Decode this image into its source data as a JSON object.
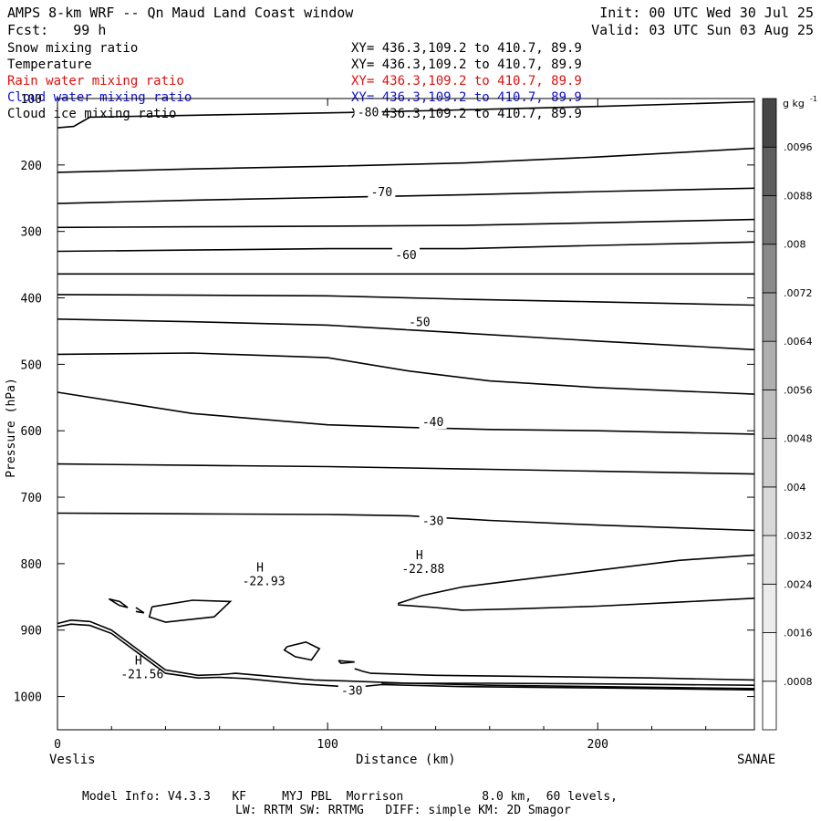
{
  "header": {
    "title": "AMPS 8-km WRF -- Qn Maud Land Coast window",
    "forecast": "Fcst:   99 h",
    "init": "Init: 00 UTC Wed 30 Jul 25",
    "valid": "Valid: 03 UTC Sun 03 Aug 25"
  },
  "fields": [
    {
      "name": "Snow mixing ratio",
      "xy": "XY= 436.3,109.2 to 410.7, 89.9",
      "color": "#000000"
    },
    {
      "name": "Temperature",
      "xy": "XY= 436.3,109.2 to 410.7, 89.9",
      "color": "#000000"
    },
    {
      "name": "Rain water mixing ratio",
      "xy": "XY= 436.3,109.2 to 410.7, 89.9",
      "color": "#e01010"
    },
    {
      "name": "Cloud water mixing ratio",
      "xy": "XY= 436.3,109.2 to 410.7, 89.9",
      "color": "#1010d0"
    },
    {
      "name": "Cloud ice mixing ratio",
      "xy": "XY= 436.3,109.2 to 410.7, 89.9",
      "color": "#000000"
    }
  ],
  "footer": {
    "line1": "Model Info: V4.3.3   KF     MYJ PBL  Morrison           8.0 km,  60 levels,",
    "line2": "LW: RRTM SW: RRTMG   DIFF: simple KM: 2D Smagor"
  },
  "chart_data": {
    "type": "contour",
    "xlabel": "Distance (km)",
    "ylabel": "Pressure (hPa)",
    "x_range": [
      0,
      258
    ],
    "y_range": [
      100,
      1050
    ],
    "x_ticks": [
      0,
      100,
      200
    ],
    "y_ticks": [
      100,
      200,
      300,
      400,
      500,
      600,
      700,
      800,
      900,
      1000
    ],
    "x_end_labels": {
      "left": "Veslis",
      "right": "SANAE"
    },
    "contour_labels": [
      {
        "text": "-80",
        "x": 115,
        "p": 120
      },
      {
        "text": "-70",
        "x": 120,
        "p": 240
      },
      {
        "text": "-60",
        "x": 129,
        "p": 335
      },
      {
        "text": "-50",
        "x": 134,
        "p": 436
      },
      {
        "text": "-40",
        "x": 139,
        "p": 586
      },
      {
        "text": "-30",
        "x": 139,
        "p": 735
      },
      {
        "text": "-30",
        "x": 109,
        "p": 990
      }
    ],
    "extrema": [
      {
        "mark": "H",
        "value": "-22.93",
        "x": 75,
        "p": 812
      },
      {
        "mark": "H",
        "value": "-22.88",
        "x": 134,
        "p": 793
      },
      {
        "mark": "H",
        "value": "-21.56",
        "x": 30,
        "p": 952
      }
    ],
    "contours": [
      {
        "x": [
          0,
          6,
          9,
          12,
          40,
          80,
          120,
          160,
          200,
          258
        ],
        "p": [
          144,
          142,
          135,
          128,
          126,
          123,
          120,
          116,
          112,
          105
        ]
      },
      {
        "x": [
          0,
          50,
          100,
          150,
          200,
          258
        ],
        "p": [
          211,
          206,
          202,
          197,
          188,
          175
        ]
      },
      {
        "x": [
          0,
          50,
          100,
          150,
          200,
          258
        ],
        "p": [
          258,
          253,
          249,
          245,
          240,
          235
        ]
      },
      {
        "x": [
          0,
          50,
          100,
          150,
          200,
          258
        ],
        "p": [
          294,
          293,
          292,
          291,
          287,
          282
        ]
      },
      {
        "x": [
          0,
          50,
          100,
          150,
          200,
          258
        ],
        "p": [
          330,
          328,
          326,
          326,
          321,
          316
        ]
      },
      {
        "x": [
          0,
          50,
          100,
          150,
          200,
          258
        ],
        "p": [
          364,
          364,
          364,
          364,
          364,
          364
        ]
      },
      {
        "x": [
          0,
          50,
          100,
          150,
          200,
          258
        ],
        "p": [
          395,
          396,
          397,
          402,
          406,
          411
        ]
      },
      {
        "x": [
          0,
          50,
          100,
          150,
          200,
          258
        ],
        "p": [
          432,
          436,
          441,
          453,
          465,
          478
        ]
      },
      {
        "x": [
          0,
          50,
          100,
          130,
          160,
          200,
          258
        ],
        "p": [
          485,
          483,
          490,
          510,
          525,
          535,
          545
        ]
      },
      {
        "x": [
          0,
          50,
          100,
          130,
          160,
          200,
          258
        ],
        "p": [
          542,
          574,
          591,
          595,
          598,
          600,
          605
        ]
      },
      {
        "x": [
          0,
          50,
          100,
          130,
          160,
          200,
          258
        ],
        "p": [
          650,
          652,
          654,
          656,
          658,
          661,
          665
        ]
      },
      {
        "x": [
          0,
          50,
          100,
          130,
          160,
          200,
          258
        ],
        "p": [
          724,
          725,
          726,
          728,
          735,
          742,
          750
        ]
      },
      {
        "x": [
          126,
          135,
          150,
          170,
          200,
          230,
          258
        ],
        "p": [
          860,
          848,
          835,
          825,
          810,
          795,
          787
        ]
      },
      {
        "x": [
          126,
          140,
          150,
          170,
          200,
          230,
          258
        ],
        "p": [
          862,
          866,
          870,
          868,
          864,
          858,
          852
        ]
      },
      {
        "x": [
          35,
          50,
          64,
          58,
          40,
          34,
          35
        ],
        "p": [
          865,
          855,
          857,
          880,
          888,
          880,
          865
        ]
      },
      {
        "x": [
          85,
          92,
          97,
          94,
          88,
          84,
          85
        ],
        "p": [
          925,
          918,
          928,
          945,
          940,
          930,
          925
        ]
      },
      {
        "x": [
          19,
          23,
          26,
          23,
          19
        ],
        "p": [
          853,
          857,
          866,
          863,
          853
        ]
      },
      {
        "x": [
          29,
          32,
          29
        ],
        "p": [
          866,
          874,
          872
        ]
      },
      {
        "x": [
          104,
          110,
          105,
          104
        ],
        "p": [
          946,
          948,
          950,
          946
        ]
      },
      {
        "x": [
          0,
          5,
          12,
          20,
          30,
          40,
          52,
          60,
          66,
          80,
          95,
          110,
          130,
          160,
          200,
          258
        ],
        "p": [
          890,
          885,
          887,
          900,
          930,
          960,
          968,
          967,
          965,
          970,
          975,
          977,
          980,
          983,
          985,
          988
        ]
      },
      {
        "x": [
          0,
          5,
          12,
          20,
          30,
          40,
          52,
          60,
          70,
          90,
          110,
          120,
          150,
          200,
          258
        ],
        "p": [
          895,
          891,
          893,
          905,
          935,
          965,
          972,
          971,
          973,
          981,
          986,
          982,
          985,
          987,
          990
        ]
      },
      {
        "x": [
          110,
          113,
          116,
          140,
          180,
          220,
          258
        ],
        "p": [
          958,
          962,
          965,
          968,
          970,
          972,
          975
        ]
      },
      {
        "x": [
          120,
          160,
          200,
          258
        ],
        "p": [
          980,
          980,
          981,
          983
        ]
      }
    ],
    "colorbar": {
      "unit": "g kg",
      "unit_exp": "-1",
      "levels": [
        "0",
        ".0008",
        ".0016",
        ".0024",
        ".0032",
        ".004",
        ".0048",
        ".0056",
        ".0064",
        ".0072",
        ".008",
        ".0088",
        ".0096",
        ".0104"
      ],
      "tick_labels": [
        ".0008",
        ".0016",
        ".0024",
        ".0032",
        ".004",
        ".0048",
        ".0056",
        ".0064",
        ".0072",
        ".008",
        ".0088",
        ".0096"
      ],
      "colors": [
        "#ffffff",
        "#f6f6f6",
        "#ececec",
        "#e2e2e2",
        "#d8d8d8",
        "#cccccc",
        "#bebebe",
        "#afafaf",
        "#9d9d9d",
        "#8a8a8a",
        "#747474",
        "#5e5e5e",
        "#464646"
      ]
    }
  }
}
